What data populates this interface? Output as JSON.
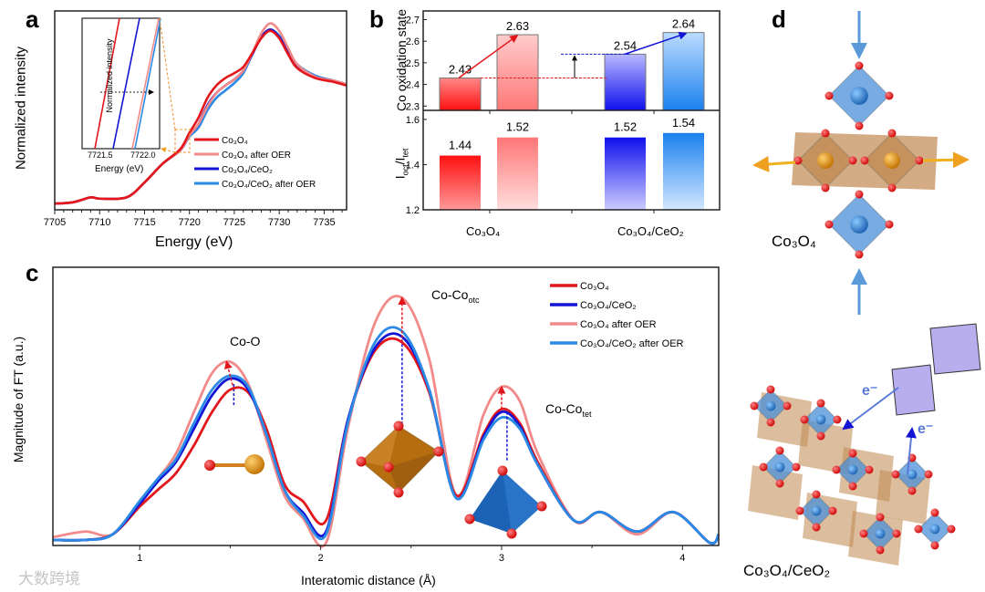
{
  "panels": {
    "a": "a",
    "b": "b",
    "c": "c",
    "d": "d"
  },
  "chart_data": [
    {
      "id": "a",
      "type": "line",
      "xlabel": "Energy (eV)",
      "ylabel": "Normalized intensity",
      "xlim": [
        7705,
        7737.5
      ],
      "ylim": [
        0,
        1.6
      ],
      "xticks": [
        7705,
        7710,
        7715,
        7720,
        7725,
        7730,
        7735
      ],
      "x": [
        7705,
        7707,
        7709,
        7710,
        7713,
        7715,
        7717,
        7719,
        7720,
        7721,
        7722,
        7723,
        7724,
        7725,
        7726,
        7727,
        7728,
        7729,
        7730,
        7731,
        7732,
        7734,
        7736,
        7737.5
      ],
      "series": [
        {
          "name": "Co₃O₄",
          "color": "#e3161b",
          "values": [
            0.05,
            0.06,
            0.1,
            0.09,
            0.1,
            0.22,
            0.37,
            0.49,
            0.62,
            0.74,
            0.9,
            1.0,
            1.06,
            1.1,
            1.15,
            1.26,
            1.38,
            1.44,
            1.38,
            1.25,
            1.14,
            1.06,
            1.03,
            1.0
          ]
        },
        {
          "name": "Co₃O₄ after OER",
          "color": "#f28a8a",
          "values": [
            0.05,
            0.06,
            0.1,
            0.09,
            0.1,
            0.22,
            0.37,
            0.48,
            0.6,
            0.69,
            0.83,
            0.94,
            1.0,
            1.05,
            1.12,
            1.26,
            1.42,
            1.5,
            1.44,
            1.3,
            1.17,
            1.07,
            1.04,
            1.01
          ]
        },
        {
          "name": "Co₃O₄/CeO₂",
          "color": "#1414d4",
          "values": [
            0.05,
            0.06,
            0.1,
            0.09,
            0.1,
            0.22,
            0.37,
            0.48,
            0.6,
            0.69,
            0.84,
            0.94,
            1.0,
            1.05,
            1.12,
            1.25,
            1.39,
            1.45,
            1.39,
            1.27,
            1.16,
            1.07,
            1.04,
            1.01
          ]
        },
        {
          "name": "Co₃O₄/CeO₂ after OER",
          "color": "#2a8ae6",
          "values": [
            0.05,
            0.06,
            0.1,
            0.09,
            0.1,
            0.22,
            0.37,
            0.48,
            0.59,
            0.66,
            0.8,
            0.9,
            0.96,
            1.02,
            1.1,
            1.25,
            1.39,
            1.45,
            1.4,
            1.28,
            1.17,
            1.08,
            1.04,
            1.01
          ]
        }
      ],
      "inset": {
        "xlabel": "Energy (eV)",
        "ylabel": "Normalized intensity",
        "xticks": [
          "7721.5",
          "7722.0"
        ]
      }
    },
    {
      "id": "b-top",
      "type": "bar",
      "ylabel": "Co oxidation state",
      "ylim": [
        2.28,
        2.74
      ],
      "yticks": [
        "2.3",
        "2.4",
        "2.5",
        "2.6",
        "2.7"
      ],
      "values": [
        2.43,
        2.63,
        2.54,
        2.64
      ],
      "labels": [
        "2.43",
        "2.63",
        "2.54",
        "2.64"
      ]
    },
    {
      "id": "b-bottom",
      "type": "bar",
      "ylabel": {
        "a": "I",
        "b": "oct",
        "c": "/I",
        "d": "tet"
      },
      "ylim": [
        1.2,
        1.64
      ],
      "yticks": [
        "1.2",
        "1.4",
        "1.6"
      ],
      "values": [
        1.44,
        1.52,
        1.52,
        1.54
      ],
      "labels": [
        "1.44",
        "1.52",
        "1.52",
        "1.54"
      ],
      "categories": [
        "Co₃O₄",
        "Co₃O₄/CeO₂"
      ]
    },
    {
      "id": "c",
      "type": "line",
      "xlabel": "Interatomic distance (Å)",
      "ylabel": "Magnitude of FT (a.u.)",
      "xlim": [
        0.52,
        4.2
      ],
      "ylim": [
        0,
        1
      ],
      "xticks": [
        "1",
        "2",
        "3",
        "4"
      ],
      "x": [
        0.52,
        0.7,
        0.85,
        1.0,
        1.1,
        1.2,
        1.3,
        1.4,
        1.5,
        1.6,
        1.7,
        1.8,
        1.9,
        2.03,
        2.15,
        2.3,
        2.45,
        2.6,
        2.75,
        2.9,
        3.0,
        3.1,
        3.2,
        3.4,
        3.55,
        3.75,
        3.95,
        4.15,
        4.2
      ],
      "series": [
        {
          "name": "Co₃O₄",
          "color": "#e3161b",
          "values": [
            0.02,
            0.02,
            0.04,
            0.14,
            0.2,
            0.26,
            0.36,
            0.48,
            0.56,
            0.55,
            0.42,
            0.22,
            0.16,
            0.09,
            0.45,
            0.7,
            0.73,
            0.55,
            0.18,
            0.4,
            0.49,
            0.44,
            0.3,
            0.09,
            0.12,
            0.05,
            0.12,
            0.01,
            0.04
          ]
        },
        {
          "name": "Co₃O₄/CeO₂",
          "color": "#1414d4",
          "values": [
            0.02,
            0.02,
            0.04,
            0.15,
            0.23,
            0.3,
            0.42,
            0.54,
            0.6,
            0.56,
            0.4,
            0.2,
            0.12,
            0.05,
            0.45,
            0.71,
            0.75,
            0.56,
            0.17,
            0.39,
            0.48,
            0.43,
            0.29,
            0.09,
            0.12,
            0.05,
            0.12,
            0.01,
            0.04
          ]
        },
        {
          "name": "Co₃O₄ after OER",
          "color": "#f28a8a",
          "values": [
            0.03,
            0.05,
            0.04,
            0.16,
            0.24,
            0.33,
            0.48,
            0.62,
            0.66,
            0.58,
            0.38,
            0.18,
            0.1,
            0.01,
            0.42,
            0.8,
            0.89,
            0.67,
            0.18,
            0.47,
            0.57,
            0.52,
            0.33,
            0.09,
            0.12,
            0.04,
            0.12,
            0.01,
            0.04
          ]
        },
        {
          "name": "Co₃O₄/CeO₂ after OER",
          "color": "#2a8ae6",
          "values": [
            0.02,
            0.02,
            0.04,
            0.16,
            0.24,
            0.31,
            0.44,
            0.56,
            0.61,
            0.57,
            0.4,
            0.2,
            0.11,
            0.04,
            0.44,
            0.73,
            0.77,
            0.56,
            0.17,
            0.38,
            0.46,
            0.42,
            0.29,
            0.09,
            0.12,
            0.05,
            0.12,
            0.01,
            0.04
          ]
        }
      ],
      "annotations": {
        "co_o": "Co-O",
        "co_co_otc": "Co-Co",
        "otc": "otc",
        "co_co_tet": "Co-Co",
        "tet": "tet"
      }
    }
  ],
  "structures": {
    "top_label": "Co₃O₄",
    "bottom_label": "Co₃O₄/CeO₂",
    "electron": "e⁻"
  },
  "watermark": "大数跨境"
}
